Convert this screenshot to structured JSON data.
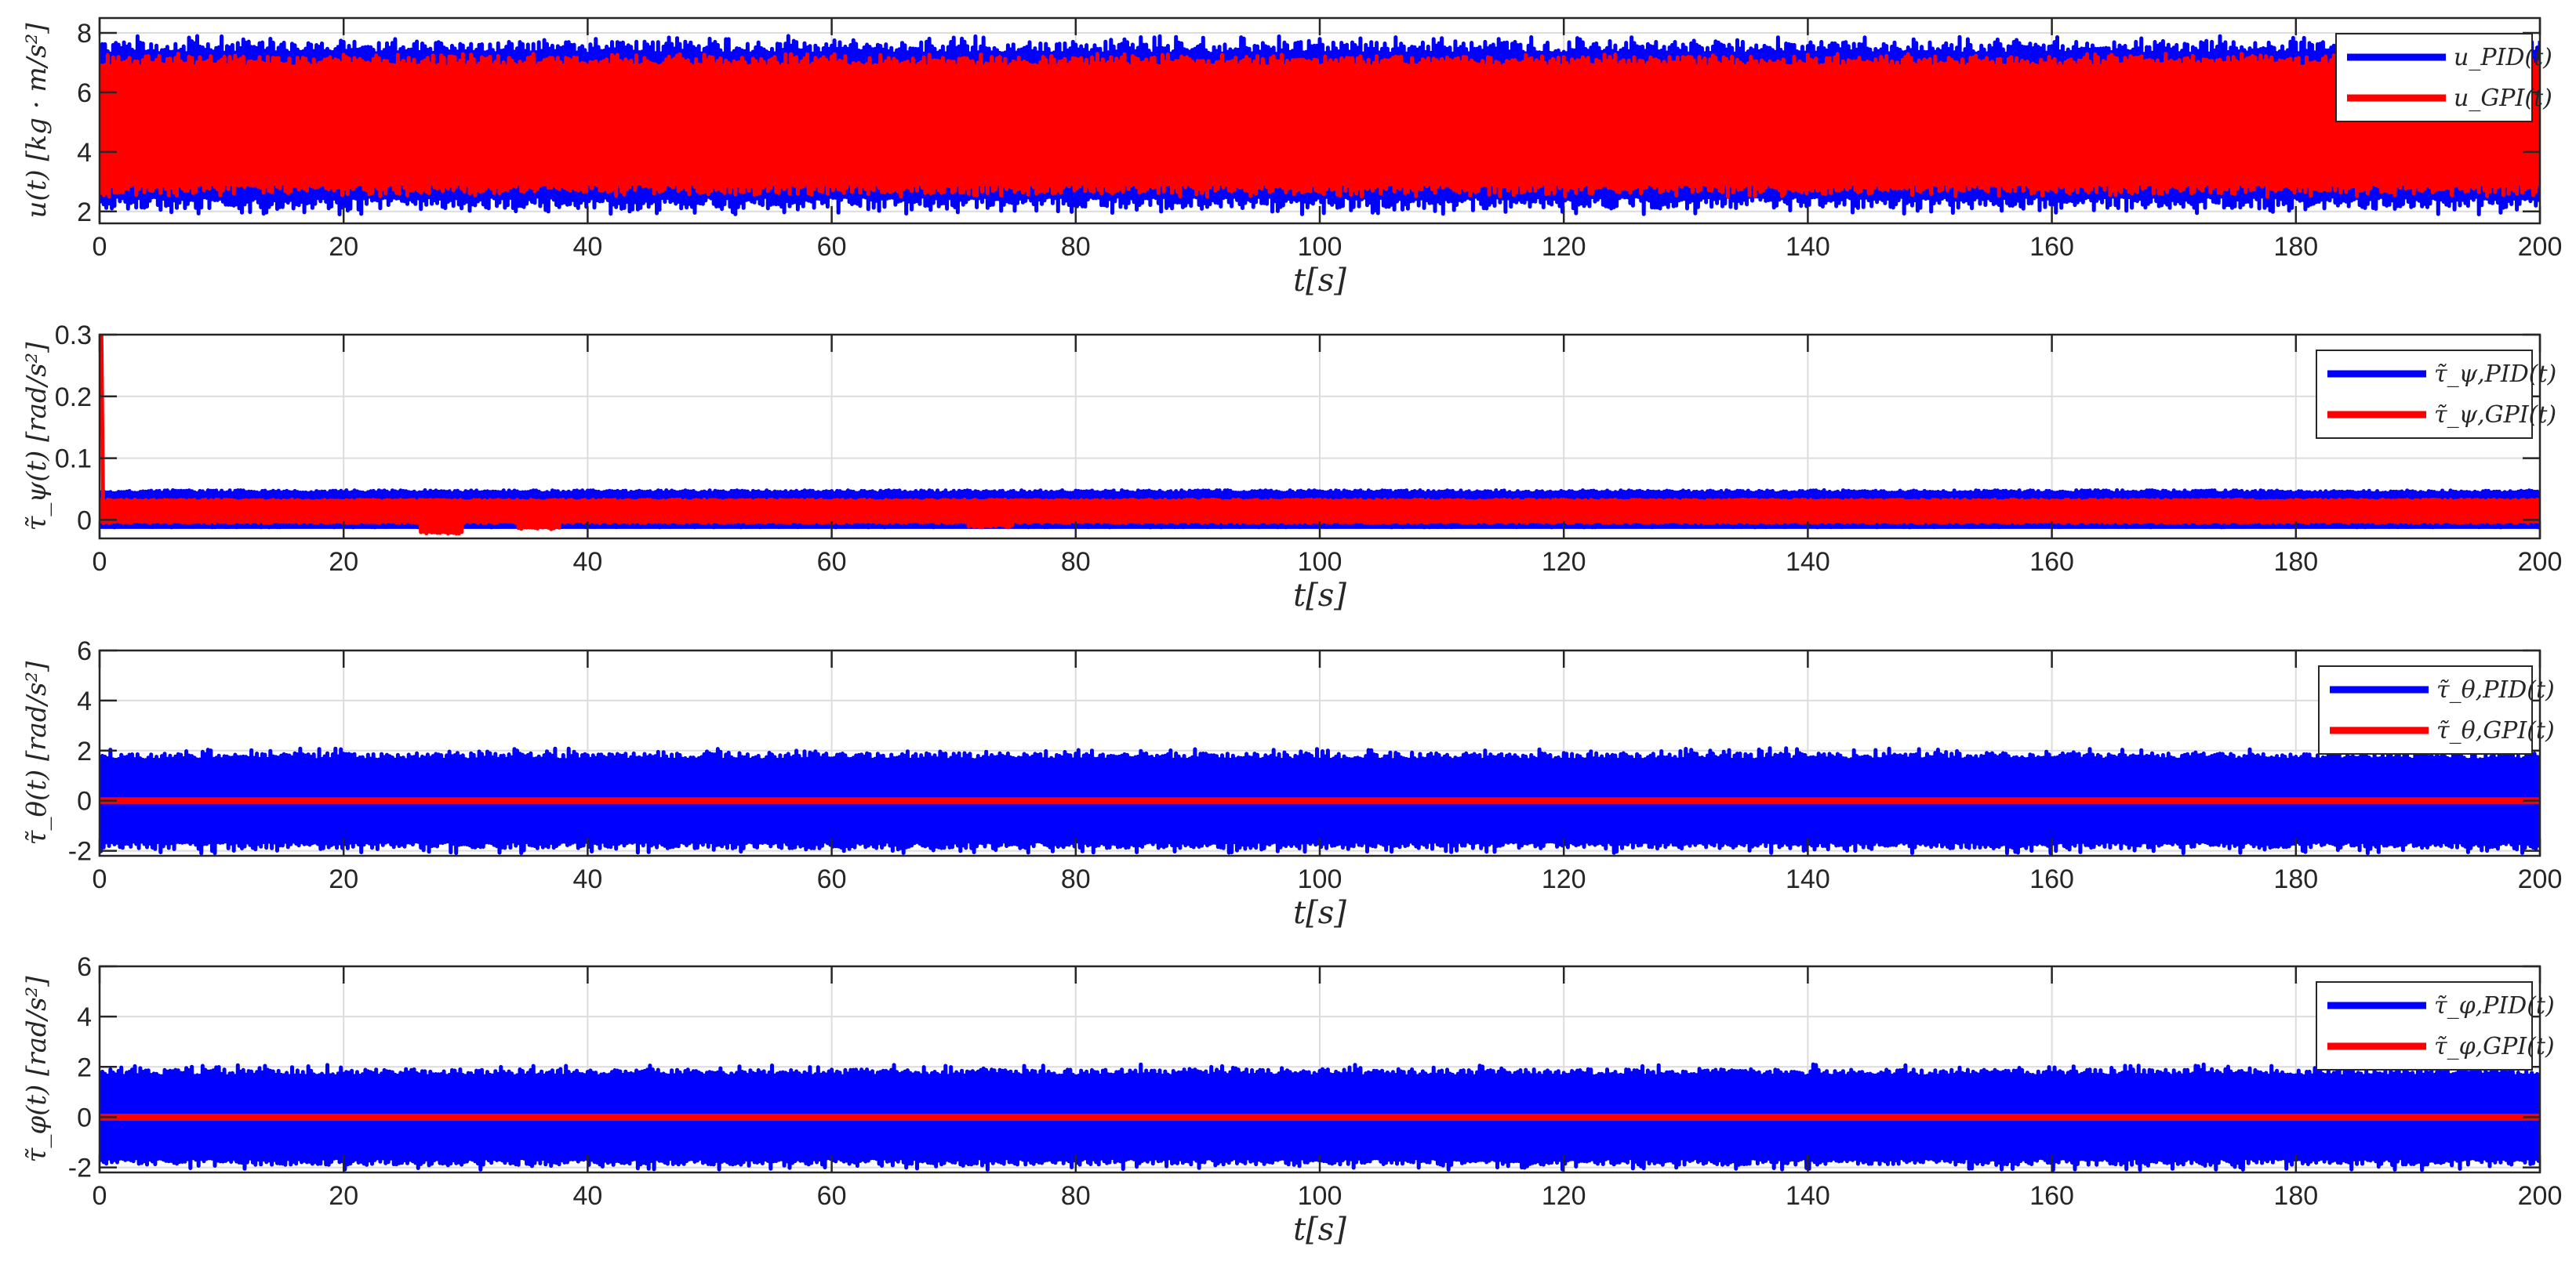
{
  "chart_data": [
    {
      "type": "line",
      "xlabel": "t[s]",
      "ylabel": "u(t)  [kg · m/s²]",
      "xlim": [
        0,
        200
      ],
      "ylim": [
        1.6,
        8.5
      ],
      "xticks": [
        0,
        20,
        40,
        60,
        80,
        100,
        120,
        140,
        160,
        180,
        200
      ],
      "yticks": [
        2,
        4,
        6,
        8
      ],
      "grid": true,
      "legend_position": "top-right",
      "series": [
        {
          "name": "u_PID(t)",
          "color": "#0000FF",
          "mean": 5.0,
          "band": [
            2.1,
            7.7
          ],
          "peak": 7.9,
          "trough": 1.9
        },
        {
          "name": "u_GPI(t)",
          "color": "#FF0000",
          "mean": 4.9,
          "band": [
            2.6,
            7.2
          ],
          "peak": 7.3,
          "trough": 2.5
        }
      ]
    },
    {
      "type": "line",
      "xlabel": "t[s]",
      "ylabel": "τ̃_ψ(t)  [rad/s²]",
      "xlim": [
        0,
        200
      ],
      "ylim": [
        -0.03,
        0.3
      ],
      "xticks": [
        0,
        20,
        40,
        60,
        80,
        100,
        120,
        140,
        160,
        180,
        200
      ],
      "yticks": [
        0,
        0.1,
        0.2,
        0.3
      ],
      "grid": true,
      "legend_position": "top-right",
      "series": [
        {
          "name": "τ̃_ψ,PID(t)",
          "color": "#0000FF",
          "band": [
            -0.012,
            0.048
          ],
          "baseline": -0.012
        },
        {
          "name": "τ̃_ψ,GPI(t)",
          "color": "#FF0000",
          "band": [
            -0.005,
            0.033
          ],
          "initial_spike": 0.3,
          "dips": [
            {
              "x": 28,
              "y": -0.022
            },
            {
              "x": 36,
              "y": -0.015
            },
            {
              "x": 73,
              "y": -0.012
            }
          ]
        }
      ]
    },
    {
      "type": "line",
      "xlabel": "t[s]",
      "ylabel": "τ̃_θ(t)  [rad/s²]",
      "xlim": [
        0,
        200
      ],
      "ylim": [
        -2.2,
        6
      ],
      "xticks": [
        0,
        20,
        40,
        60,
        80,
        100,
        120,
        140,
        160,
        180,
        200
      ],
      "yticks": [
        -2,
        0,
        2,
        4,
        6
      ],
      "grid": true,
      "legend_position": "top-right",
      "series": [
        {
          "name": "τ̃_θ,PID(t)",
          "color": "#0000FF",
          "band": [
            -1.9,
            1.9
          ],
          "peak": 2.1,
          "trough": -2.1
        },
        {
          "name": "τ̃_θ,GPI(t)",
          "color": "#FF0000",
          "value": 0
        }
      ]
    },
    {
      "type": "line",
      "xlabel": "t[s]",
      "ylabel": "τ̃_φ(t)  [rad/s²]",
      "xlim": [
        0,
        200
      ],
      "ylim": [
        -2.2,
        6
      ],
      "xticks": [
        0,
        20,
        40,
        60,
        80,
        100,
        120,
        140,
        160,
        180,
        200
      ],
      "yticks": [
        -2,
        0,
        2,
        4,
        6
      ],
      "grid": true,
      "legend_position": "top-right",
      "series": [
        {
          "name": "τ̃_φ,PID(t)",
          "color": "#0000FF",
          "band": [
            -1.9,
            1.9
          ],
          "peak": 2.1,
          "trough": -2.1
        },
        {
          "name": "τ̃_φ,GPI(t)",
          "color": "#FF0000",
          "value": 0
        }
      ]
    }
  ]
}
